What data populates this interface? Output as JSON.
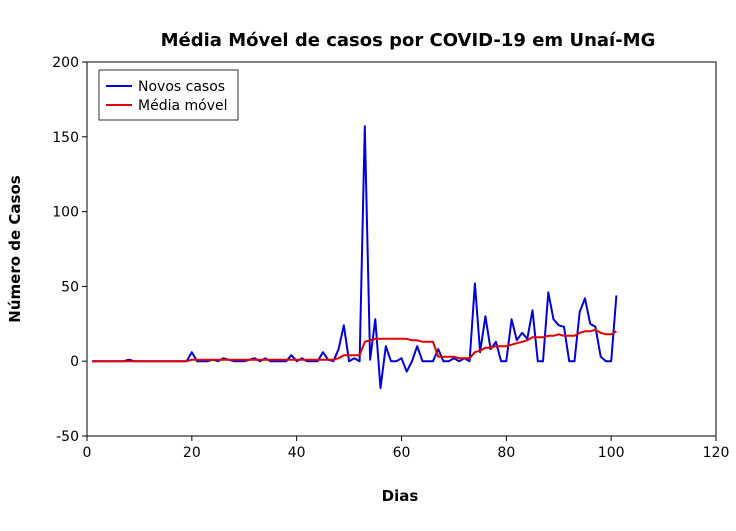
{
  "chart_data": {
    "type": "line",
    "title": "Média Móvel de casos por COVID-19 em Unaí-MG",
    "xlabel": "Dias",
    "ylabel": "Número de Casos",
    "xlim": [
      0,
      120
    ],
    "ylim": [
      -50,
      200
    ],
    "xticks": [
      0,
      20,
      40,
      60,
      80,
      100,
      120
    ],
    "yticks": [
      -50,
      0,
      50,
      100,
      150,
      200
    ],
    "grid": false,
    "legend_position": "top-left",
    "series": [
      {
        "name": "Novos casos",
        "color": "#0000dd",
        "x": [
          1,
          2,
          3,
          4,
          5,
          6,
          7,
          8,
          9,
          10,
          11,
          12,
          13,
          14,
          15,
          16,
          17,
          18,
          19,
          20,
          21,
          22,
          23,
          24,
          25,
          26,
          27,
          28,
          29,
          30,
          31,
          32,
          33,
          34,
          35,
          36,
          37,
          38,
          39,
          40,
          41,
          42,
          43,
          44,
          45,
          46,
          47,
          48,
          49,
          50,
          51,
          52,
          53,
          54,
          55,
          56,
          57,
          58,
          59,
          60,
          61,
          62,
          63,
          64,
          65,
          66,
          67,
          68,
          69,
          70,
          71,
          72,
          73,
          74,
          75,
          76,
          77,
          78,
          79,
          80,
          81,
          82,
          83,
          84,
          85,
          86,
          87,
          88,
          89,
          90,
          91,
          92,
          93,
          94,
          95,
          96,
          97,
          98,
          99,
          100,
          101
        ],
        "y": [
          0,
          0,
          0,
          0,
          0,
          0,
          0,
          1,
          0,
          0,
          0,
          0,
          0,
          0,
          0,
          0,
          0,
          0,
          0,
          6,
          0,
          0,
          0,
          1,
          0,
          2,
          1,
          0,
          0,
          0,
          1,
          2,
          0,
          2,
          0,
          0,
          0,
          0,
          4,
          0,
          2,
          0,
          0,
          0,
          6,
          1,
          0,
          8,
          24,
          0,
          2,
          0,
          157,
          1,
          28,
          -18,
          10,
          0,
          0,
          2,
          -7,
          0,
          10,
          0,
          0,
          0,
          8,
          0,
          0,
          2,
          0,
          2,
          0,
          52,
          6,
          30,
          8,
          13,
          0,
          0,
          28,
          14,
          19,
          15,
          34,
          0,
          0,
          46,
          28,
          24,
          23,
          0,
          0,
          33,
          42,
          25,
          23,
          3,
          0,
          0,
          44
        ]
      },
      {
        "name": "Média móvel",
        "color": "#dd0000",
        "x": [
          1,
          2,
          3,
          4,
          5,
          6,
          7,
          8,
          9,
          10,
          11,
          12,
          13,
          14,
          15,
          16,
          17,
          18,
          19,
          20,
          21,
          22,
          23,
          24,
          25,
          26,
          27,
          28,
          29,
          30,
          31,
          32,
          33,
          34,
          35,
          36,
          37,
          38,
          39,
          40,
          41,
          42,
          43,
          44,
          45,
          46,
          47,
          48,
          49,
          50,
          51,
          52,
          53,
          54,
          55,
          56,
          57,
          58,
          59,
          60,
          61,
          62,
          63,
          64,
          65,
          66,
          67,
          68,
          69,
          70,
          71,
          72,
          73,
          74,
          75,
          76,
          77,
          78,
          79,
          80,
          81,
          82,
          83,
          84,
          85,
          86,
          87,
          88,
          89,
          90,
          91,
          92,
          93,
          94,
          95,
          96,
          97,
          98,
          99,
          100,
          101
        ],
        "y": [
          0,
          0,
          0,
          0,
          0,
          0,
          0,
          0,
          0,
          0,
          0,
          0,
          0,
          0,
          0,
          0,
          0,
          0,
          0,
          1,
          1,
          1,
          1,
          1,
          1,
          1,
          1,
          1,
          1,
          1,
          1,
          1,
          1,
          1,
          1,
          1,
          1,
          1,
          1,
          1,
          1,
          1,
          1,
          1,
          1,
          1,
          1,
          2,
          4,
          4,
          4,
          4,
          13,
          14,
          15,
          15,
          15,
          15,
          15,
          15,
          15,
          14,
          14,
          13,
          13,
          13,
          3,
          3,
          3,
          3,
          2,
          2,
          2,
          6,
          7,
          9,
          9,
          10,
          10,
          10,
          11,
          12,
          13,
          14,
          16,
          16,
          16,
          17,
          17,
          18,
          17,
          17,
          17,
          19,
          20,
          20,
          21,
          19,
          18,
          18,
          20
        ]
      }
    ]
  }
}
